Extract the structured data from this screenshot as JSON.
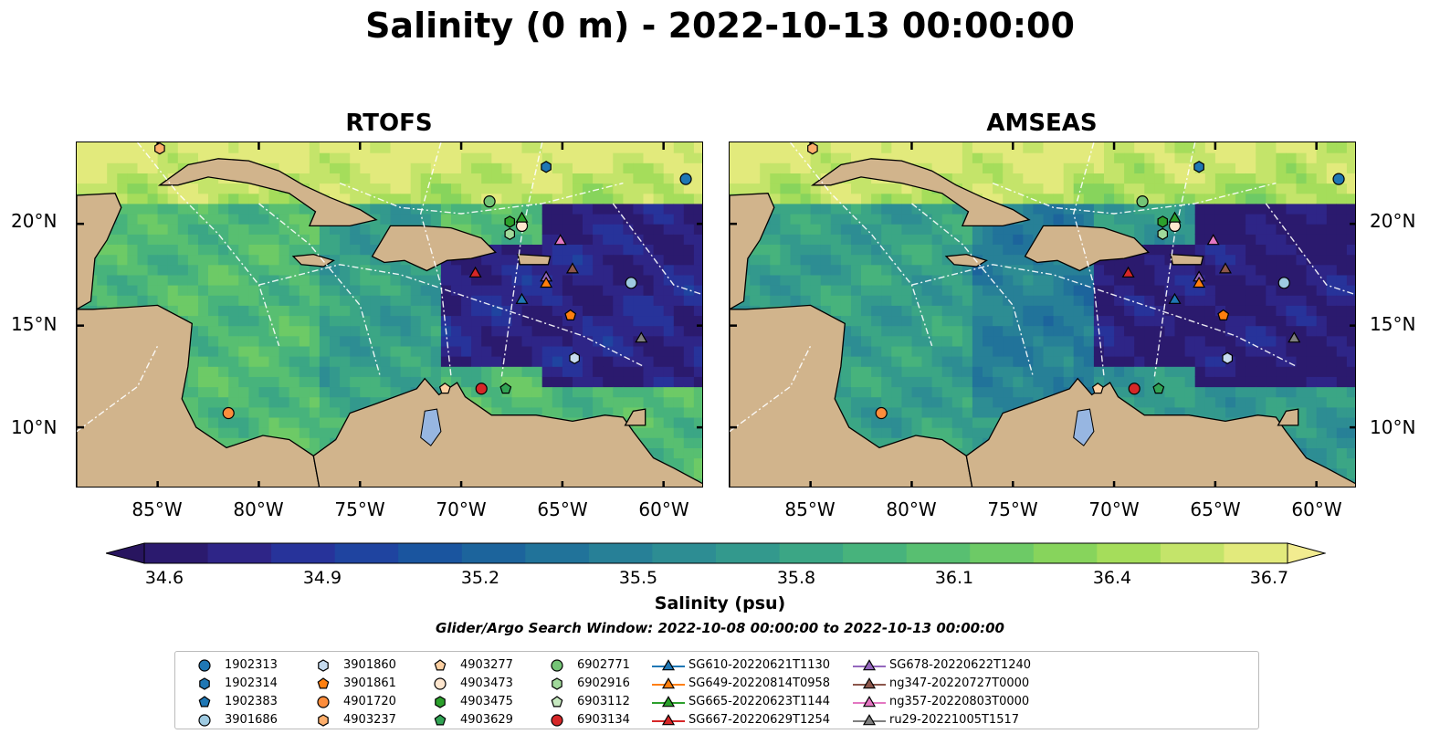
{
  "title": "Salinity (0 m) - 2022-10-13 00:00:00",
  "panels": [
    {
      "title": "RTOFS"
    },
    {
      "title": "AMSEAS"
    }
  ],
  "lat_labels": [
    "20°N",
    "15°N",
    "10°N"
  ],
  "lon_labels": [
    "85°W",
    "80°W",
    "75°W",
    "70°W",
    "65°W",
    "60°W"
  ],
  "colorbar": {
    "ticks": [
      "34.6",
      "34.9",
      "35.2",
      "35.5",
      "35.8",
      "36.1",
      "36.4",
      "36.7"
    ],
    "label": "Salinity (psu)",
    "colors": [
      "#2b1a6e",
      "#2e2587",
      "#27339a",
      "#1f44a0",
      "#1a559f",
      "#1c649c",
      "#21739a",
      "#278097",
      "#2d8d93",
      "#33998d",
      "#3ba685",
      "#47b37c",
      "#58bf71",
      "#6dca66",
      "#87d45c",
      "#a5dd5b",
      "#c4e46a",
      "#e2ea7c"
    ],
    "over_color": "#f2ec90",
    "under_color": "#28155f"
  },
  "search_window": "Glider/Argo Search Window: 2022-10-08 00:00:00 to 2022-10-13 00:00:00",
  "map_colors": {
    "land": "#d1b48c",
    "lake": "#97b6e1"
  },
  "legend": [
    {
      "label": "1902313",
      "marker": "circle",
      "color": "#1f77b4"
    },
    {
      "label": "1902314",
      "marker": "hexagon",
      "color": "#1f77b4"
    },
    {
      "label": "1902383",
      "marker": "pentagon",
      "color": "#1f77b4"
    },
    {
      "label": "3901686",
      "marker": "circle",
      "color": "#9ecae1"
    },
    {
      "label": "3901860",
      "marker": "hexagon",
      "color": "#c6dbef"
    },
    {
      "label": "3901861",
      "marker": "pentagon",
      "color": "#ff7f0e"
    },
    {
      "label": "4901720",
      "marker": "circle",
      "color": "#fd8d3c"
    },
    {
      "label": "4903237",
      "marker": "hexagon",
      "color": "#fdae6b"
    },
    {
      "label": "4903277",
      "marker": "pentagon",
      "color": "#fdd0a2"
    },
    {
      "label": "4903473",
      "marker": "circle",
      "color": "#fee6ce"
    },
    {
      "label": "4903475",
      "marker": "hexagon",
      "color": "#2ca02c"
    },
    {
      "label": "4903629",
      "marker": "pentagon",
      "color": "#31a354"
    },
    {
      "label": "6902771",
      "marker": "circle",
      "color": "#74c476"
    },
    {
      "label": "6902916",
      "marker": "hexagon",
      "color": "#a1d99b"
    },
    {
      "label": "6903112",
      "marker": "pentagon",
      "color": "#c7e9c0"
    },
    {
      "label": "6903134",
      "marker": "circle",
      "color": "#d62728"
    },
    {
      "label": "SG610-20220621T1130",
      "marker": "triangle",
      "color": "#1f77b4"
    },
    {
      "label": "SG649-20220814T0958",
      "marker": "triangle",
      "color": "#ff7f0e"
    },
    {
      "label": "SG665-20220623T1144",
      "marker": "triangle",
      "color": "#2ca02c"
    },
    {
      "label": "SG667-20220629T1254",
      "marker": "triangle",
      "color": "#d62728"
    },
    {
      "label": "SG678-20220622T1240",
      "marker": "triangle",
      "color": "#9467bd"
    },
    {
      "label": "ng347-20220727T0000",
      "marker": "triangle",
      "color": "#8c564b"
    },
    {
      "label": "ng357-20220803T0000",
      "marker": "triangle",
      "color": "#e377c2"
    },
    {
      "label": "ru29-20221005T1517",
      "marker": "triangle",
      "color": "#7f7f7f"
    }
  ],
  "observations": [
    {
      "id": "1902313",
      "marker": "circle",
      "color": "#1f77b4",
      "lon": -58.9,
      "lat": 22.2
    },
    {
      "id": "1902314",
      "marker": "hexagon",
      "color": "#1f77b4",
      "lon": -65.8,
      "lat": 22.8
    },
    {
      "id": "4903237",
      "marker": "hexagon",
      "color": "#fdae6b",
      "lon": -84.9,
      "lat": 23.7
    },
    {
      "id": "6902771",
      "marker": "circle",
      "color": "#74c476",
      "lon": -68.6,
      "lat": 21.1
    },
    {
      "id": "4903475",
      "marker": "hexagon",
      "color": "#2ca02c",
      "lon": -67.6,
      "lat": 20.1
    },
    {
      "id": "4903473",
      "marker": "circle",
      "color": "#fee6ce",
      "lon": -67.0,
      "lat": 19.9
    },
    {
      "id": "6902916",
      "marker": "hexagon",
      "color": "#a1d99b",
      "lon": -67.6,
      "lat": 19.5
    },
    {
      "id": "SG665-20220623T1144",
      "marker": "triangle",
      "color": "#2ca02c",
      "lon": -67.0,
      "lat": 20.3
    },
    {
      "id": "ng357-20220803T0000",
      "marker": "triangle",
      "color": "#e377c2",
      "lon": -65.1,
      "lat": 19.2
    },
    {
      "id": "SG667-20220629T1254",
      "marker": "triangle",
      "color": "#d62728",
      "lon": -69.3,
      "lat": 17.6
    },
    {
      "id": "SG678-20220622T1240",
      "marker": "triangle",
      "color": "#9467bd",
      "lon": -65.8,
      "lat": 17.4
    },
    {
      "id": "SG649-20220814T0958",
      "marker": "triangle",
      "color": "#ff7f0e",
      "lon": -65.8,
      "lat": 17.1
    },
    {
      "id": "ng347-20220727T0000",
      "marker": "triangle",
      "color": "#8c564b",
      "lon": -64.5,
      "lat": 17.8
    },
    {
      "id": "SG610-20220621T1130",
      "marker": "triangle",
      "color": "#1f77b4",
      "lon": -67.0,
      "lat": 16.3
    },
    {
      "id": "3901686",
      "marker": "circle",
      "color": "#9ecae1",
      "lon": -61.6,
      "lat": 17.1
    },
    {
      "id": "3901861",
      "marker": "pentagon",
      "color": "#ff7f0e",
      "lon": -64.6,
      "lat": 15.5
    },
    {
      "id": "ru29-20221005T1517",
      "marker": "triangle",
      "color": "#7f7f7f",
      "lon": -61.1,
      "lat": 14.4
    },
    {
      "id": "3901860",
      "marker": "hexagon",
      "color": "#c6dbef",
      "lon": -64.4,
      "lat": 13.4
    },
    {
      "id": "6903134",
      "marker": "circle",
      "color": "#d62728",
      "lon": -69.0,
      "lat": 11.9
    },
    {
      "id": "4903629",
      "marker": "pentagon",
      "color": "#31a354",
      "lon": -67.8,
      "lat": 11.9
    },
    {
      "id": "4903277",
      "marker": "pentagon",
      "color": "#fdd0a2",
      "lon": -70.8,
      "lat": 11.9
    },
    {
      "id": "4901720",
      "marker": "circle",
      "color": "#fd8d3c",
      "lon": -81.5,
      "lat": 10.7
    }
  ],
  "extent": {
    "lon_min": -89,
    "lon_max": -58,
    "lat_min": 7,
    "lat_max": 24
  }
}
